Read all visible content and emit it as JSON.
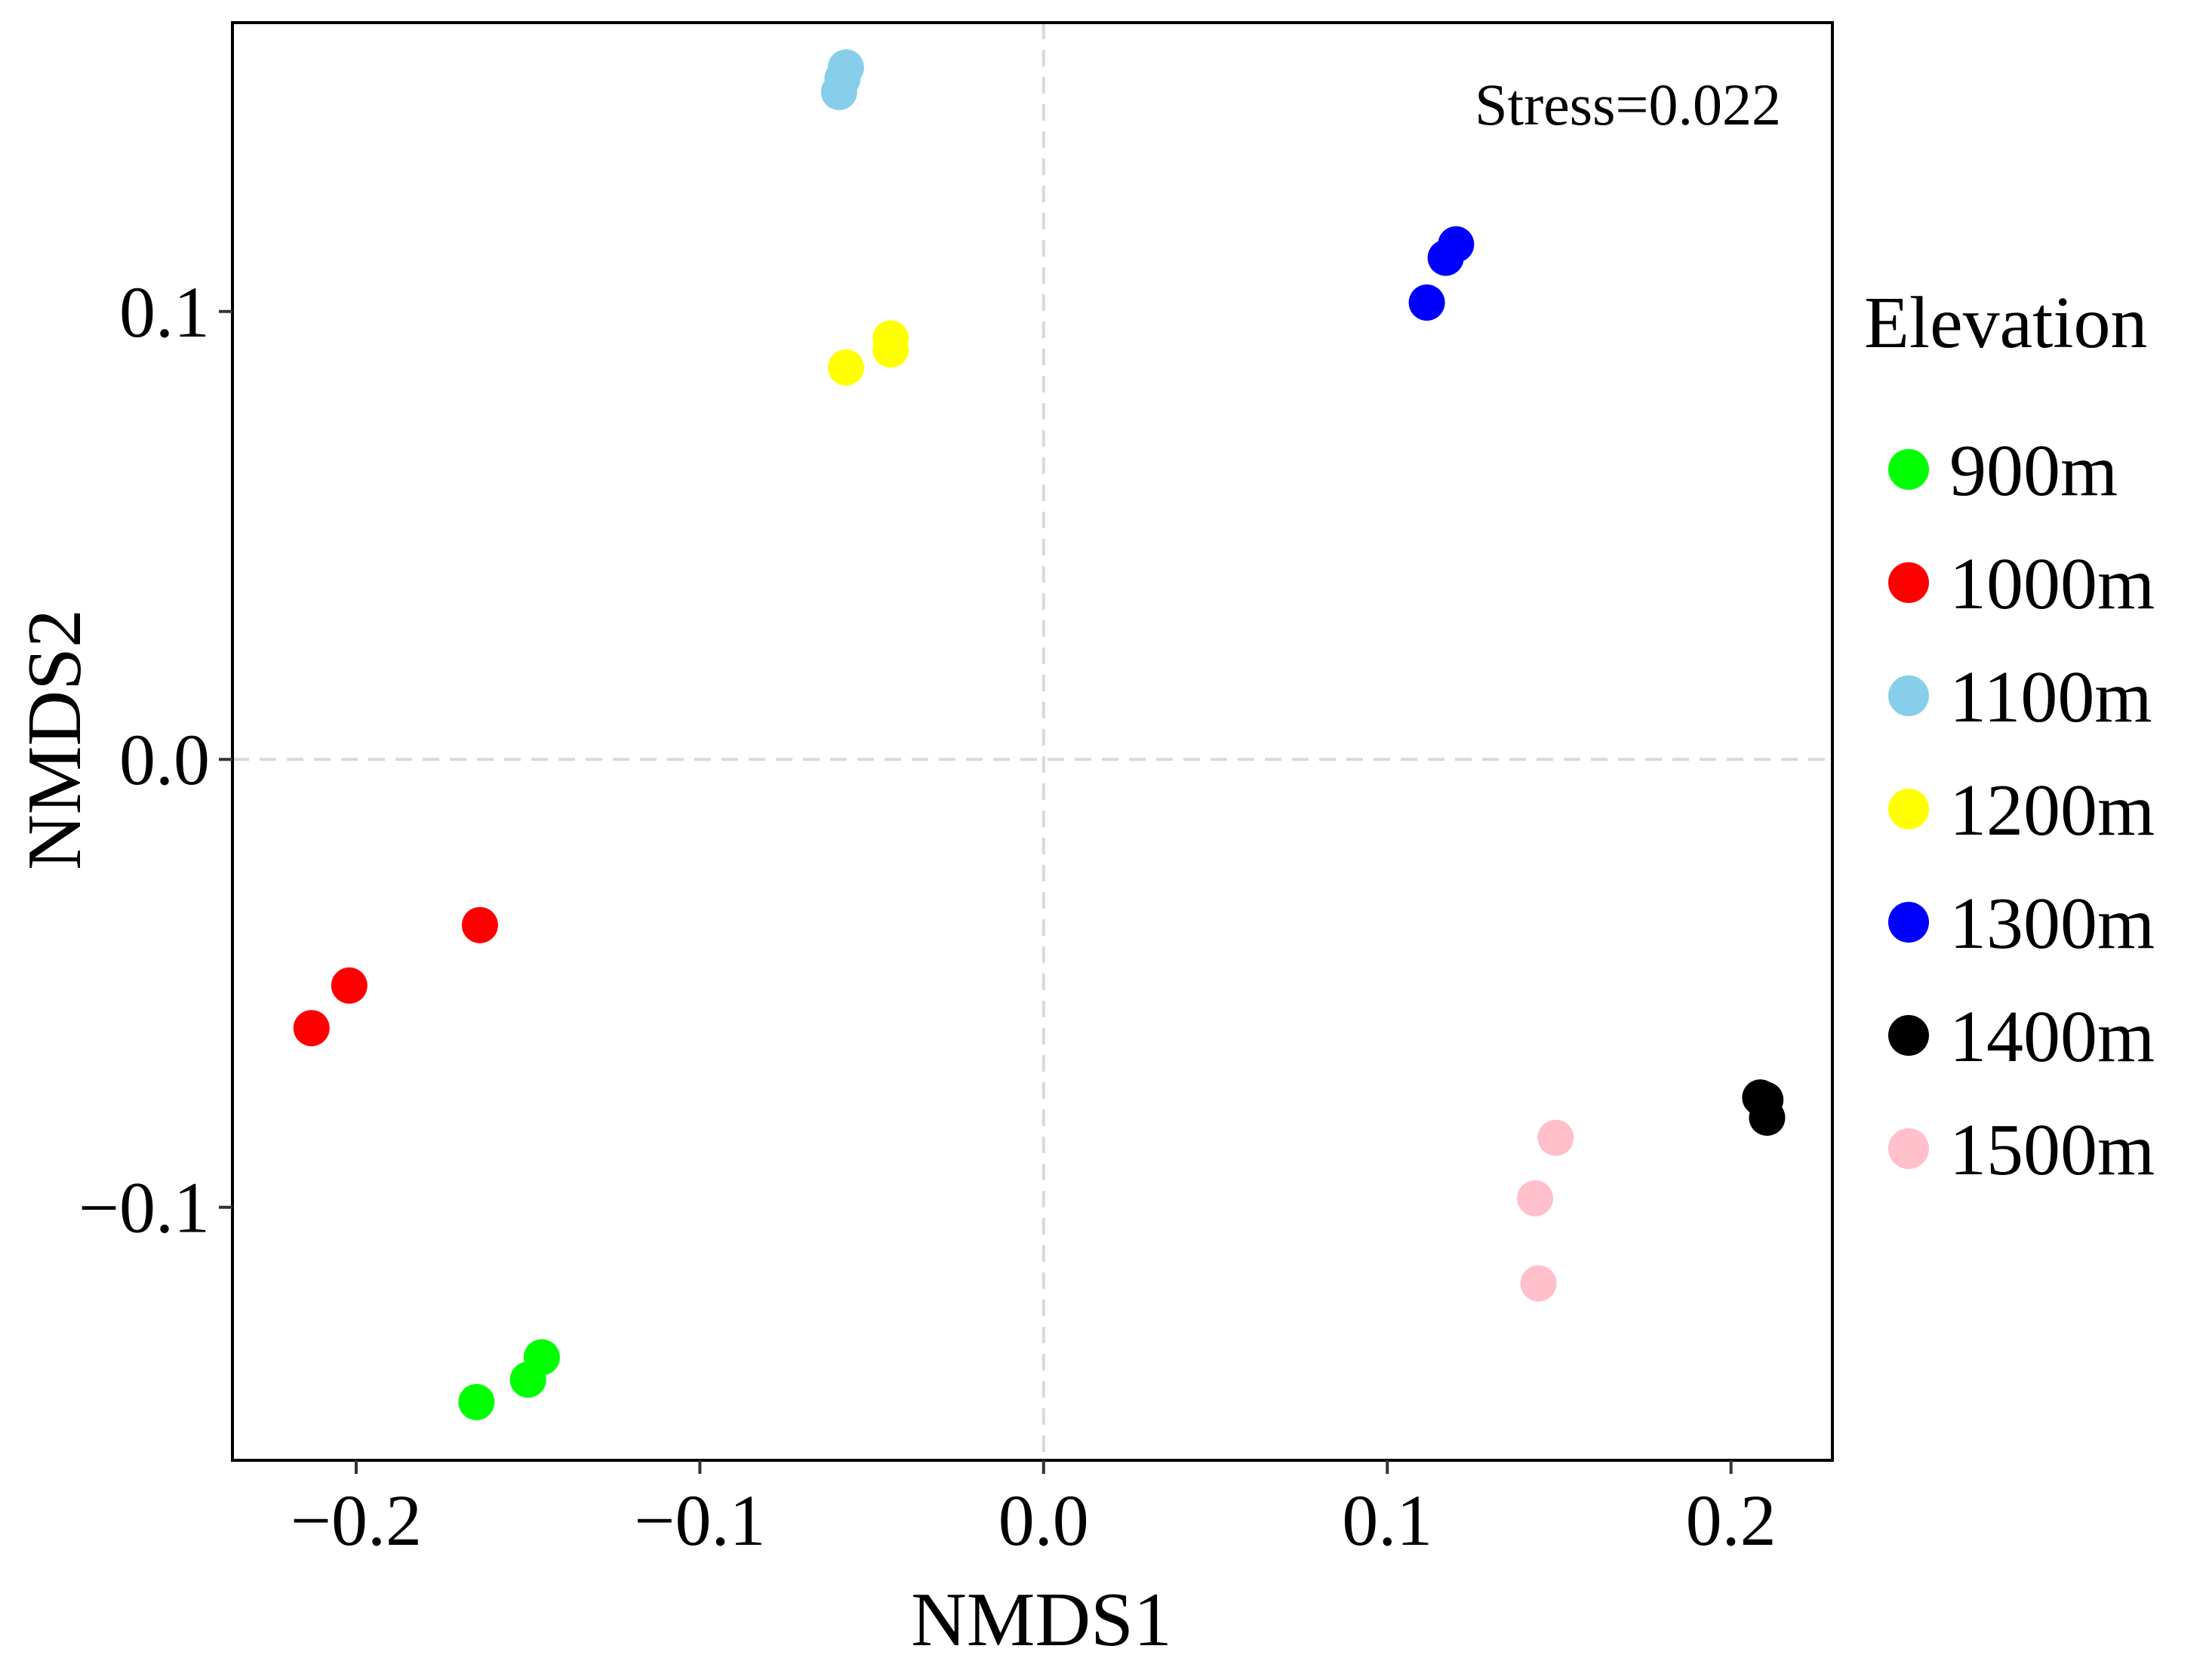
{
  "chart_data": {
    "type": "scatter",
    "title": "",
    "xlabel": "NMDS1",
    "ylabel": "NMDS2",
    "xlim": [
      -0.236,
      0.2295
    ],
    "ylim": [
      -0.1565,
      0.1645
    ],
    "xticks": [
      -0.2,
      -0.1,
      0.0,
      0.1,
      0.2
    ],
    "xtick_labels": [
      "−0.2",
      "−0.1",
      "0.0",
      "0.1",
      "0.2"
    ],
    "yticks": [
      -0.1,
      0.0,
      0.1
    ],
    "ytick_labels": [
      "−0.1",
      "0.0",
      "0.1"
    ],
    "reference_lines": {
      "x": 0.0,
      "y": 0.0,
      "style": "dashed",
      "color": "#d9d9d9"
    },
    "grid": false,
    "annotation": "Stress=0.022",
    "legend": {
      "title": "Elevation",
      "position": "right"
    },
    "series": [
      {
        "name": "900m",
        "color": "#00ff00",
        "points": [
          [
            -0.165,
            -0.1435
          ],
          [
            -0.15,
            -0.1385
          ],
          [
            -0.146,
            -0.1335
          ]
        ]
      },
      {
        "name": "1000m",
        "color": "#ff0000",
        "points": [
          [
            -0.213,
            -0.06
          ],
          [
            -0.202,
            -0.0505
          ],
          [
            -0.164,
            -0.037
          ]
        ]
      },
      {
        "name": "1100m",
        "color": "#87ceeb",
        "points": [
          [
            -0.0595,
            0.149
          ],
          [
            -0.0585,
            0.152
          ],
          [
            -0.0575,
            0.1545
          ]
        ]
      },
      {
        "name": "1200m",
        "color": "#ffff00",
        "points": [
          [
            -0.0575,
            0.0875
          ],
          [
            -0.0445,
            0.0915
          ],
          [
            -0.0445,
            0.094
          ]
        ]
      },
      {
        "name": "1300m",
        "color": "#0000ff",
        "points": [
          [
            0.1115,
            0.102
          ],
          [
            0.117,
            0.112
          ],
          [
            0.12,
            0.115
          ]
        ]
      },
      {
        "name": "1400m",
        "color": "#000000",
        "points": [
          [
            0.2085,
            -0.0755
          ],
          [
            0.21,
            -0.076
          ],
          [
            0.2105,
            -0.08
          ]
        ]
      },
      {
        "name": "1500m",
        "color": "#ffc0cb",
        "points": [
          [
            0.149,
            -0.0845
          ],
          [
            0.143,
            -0.098
          ],
          [
            0.144,
            -0.117
          ]
        ]
      }
    ]
  }
}
